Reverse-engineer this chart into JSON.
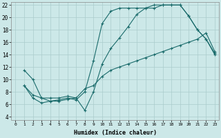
{
  "xlabel": "Humidex (Indice chaleur)",
  "background_color": "#cce8e8",
  "grid_color": "#aacccc",
  "line_color": "#1a6b6b",
  "xlim": [
    -0.5,
    23.5
  ],
  "ylim": [
    3.5,
    22.5
  ],
  "xticks": [
    0,
    1,
    2,
    3,
    4,
    5,
    6,
    7,
    8,
    9,
    10,
    11,
    12,
    13,
    14,
    15,
    16,
    17,
    18,
    19,
    20,
    21,
    22,
    23
  ],
  "yticks": [
    4,
    6,
    8,
    10,
    12,
    14,
    16,
    18,
    20,
    22
  ],
  "series1_x": [
    1,
    2,
    3,
    4,
    5,
    6,
    7,
    8,
    9,
    10,
    11,
    12,
    13,
    14,
    15,
    16,
    17,
    18,
    19,
    20,
    21,
    22,
    23
  ],
  "series1_y": [
    11.5,
    10,
    7,
    6.5,
    6.5,
    6.8,
    7.0,
    5.0,
    8.0,
    12.5,
    15.0,
    16.7,
    18.5,
    20.5,
    21.5,
    21.5,
    22.0,
    22.0,
    22.0,
    20.2,
    18.0,
    16.5,
    14.2
  ],
  "series2_x": [
    1,
    2,
    3,
    4,
    5,
    6,
    7,
    8,
    9,
    10,
    11,
    12,
    13,
    14,
    15,
    16,
    17,
    18,
    19,
    20,
    21,
    22,
    23
  ],
  "series2_y": [
    9.0,
    7.0,
    6.2,
    6.5,
    6.7,
    7.0,
    6.7,
    8.0,
    13.0,
    19.0,
    21.0,
    21.5,
    21.5,
    21.5,
    21.5,
    22.0,
    22.0,
    22.0,
    22.0,
    20.2,
    18.0,
    16.5,
    14.0
  ],
  "series3_x": [
    1,
    2,
    3,
    4,
    5,
    6,
    7,
    8,
    9,
    10,
    11,
    12,
    13,
    14,
    15,
    16,
    17,
    18,
    19,
    20,
    21,
    22,
    23
  ],
  "series3_y": [
    9.0,
    7.5,
    7.0,
    7.0,
    7.0,
    7.3,
    7.0,
    8.5,
    9.0,
    10.5,
    11.5,
    12.0,
    12.5,
    13.0,
    13.5,
    14.0,
    14.5,
    15.0,
    15.5,
    16.0,
    16.5,
    17.5,
    14.5
  ],
  "marker": "+"
}
